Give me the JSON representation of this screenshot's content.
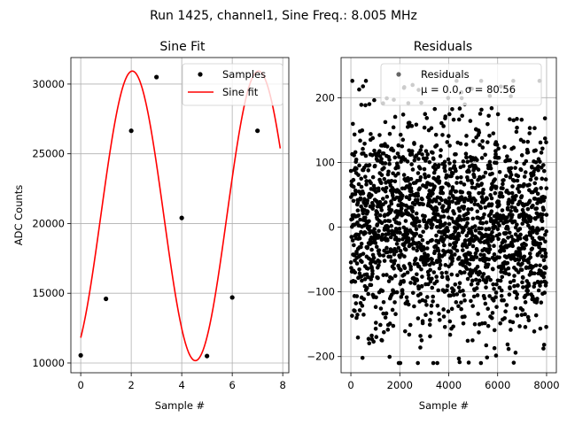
{
  "figure": {
    "suptitle": "Run 1425, channel1, Sine Freq.: 8.005 MHz"
  },
  "chart_data": [
    {
      "type": "scatter+line",
      "title": "Sine Fit",
      "xlabel": "Sample #",
      "ylabel": "ADC Counts",
      "xlim": [
        -0.39,
        8.24
      ],
      "ylim": [
        9300,
        31900
      ],
      "xticks": [
        "0",
        "2",
        "4",
        "6",
        "8"
      ],
      "yticks": [
        "10000",
        "15000",
        "20000",
        "25000",
        "30000"
      ],
      "xtick_values": [
        0,
        2,
        4,
        6,
        8
      ],
      "ytick_values": [
        10000,
        15000,
        20000,
        25000,
        30000
      ],
      "grid": true,
      "legend_position": "top-right",
      "series": [
        {
          "name": "Samples",
          "kind": "scatter",
          "color": "#000000",
          "x": [
            0,
            1,
            2,
            3,
            4,
            5,
            6,
            7
          ],
          "y": [
            10550,
            14600,
            26650,
            30500,
            20400,
            10500,
            14700,
            26650
          ]
        },
        {
          "name": "Sine fit",
          "kind": "line",
          "color": "#ff0000",
          "model": {
            "offset": 20550,
            "amplitude": 10380,
            "period": 4.9937,
            "phase": -1.0
          },
          "x_range": [
            0,
            7.9
          ]
        }
      ]
    },
    {
      "type": "scatter",
      "title": "Residuals",
      "xlabel": "Sample #",
      "ylabel": "",
      "xlim": [
        -400,
        8400
      ],
      "ylim": [
        -225,
        262
      ],
      "xticks": [
        "0",
        "2000",
        "4000",
        "6000",
        "8000"
      ],
      "yticks": [
        "−200",
        "−100",
        "0",
        "100",
        "200"
      ],
      "xtick_values": [
        0,
        2000,
        4000,
        6000,
        8000
      ],
      "ytick_values": [
        -200,
        -100,
        0,
        100,
        200
      ],
      "grid": true,
      "legend_position": "top-right",
      "series": [
        {
          "name": "Residuals",
          "kind": "scatter",
          "color": "#000000",
          "n_points": 8000,
          "mean": 0.0,
          "std": 80.56,
          "envelope_min": -210,
          "envelope_max": 226
        }
      ],
      "legend_line2": "μ = 0.0, σ = 80.56"
    }
  ]
}
